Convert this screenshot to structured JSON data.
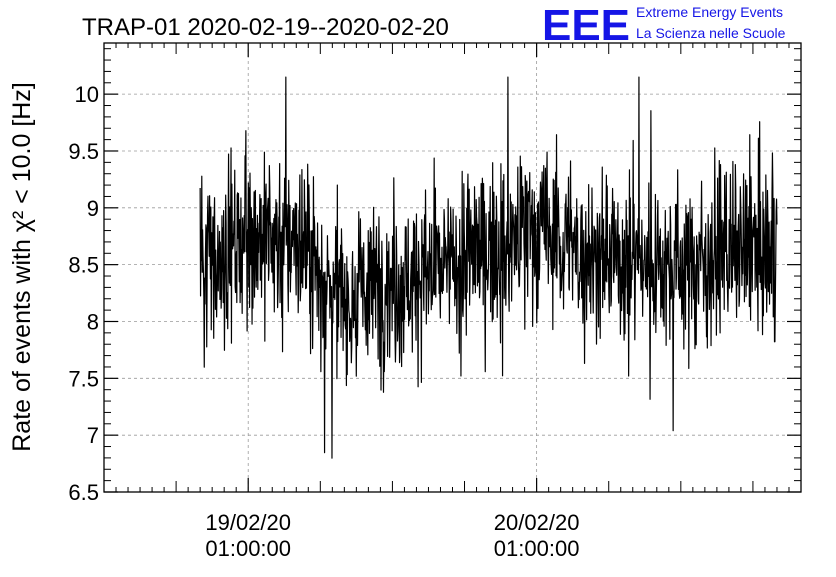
{
  "chart_data": {
    "type": "line",
    "title": "TRAP-01 2020-02-19--2020-02-20",
    "ylabel": "Rate of events with χ² < 10.0 [Hz]",
    "xlabel": "",
    "ylim": [
      6.5,
      10.45
    ],
    "yticks": [
      6.5,
      7,
      7.5,
      8,
      8.5,
      9,
      9.5,
      10
    ],
    "ytick_labels": [
      "6.5",
      "7",
      "7.5",
      "8",
      "8.5",
      "9",
      "9.5",
      "10"
    ],
    "xlim": [
      "2020-02-18 13:00",
      "2020-02-20 23:00"
    ],
    "xticks": [
      {
        "x": "2020-02-19 01:00",
        "date": "19/02/20",
        "time": "01:00:00"
      },
      {
        "x": "2020-02-20 01:00",
        "date": "20/02/20",
        "time": "01:00:00"
      }
    ],
    "grid": true,
    "legend": "none",
    "line_color": "#000000",
    "series": [
      {
        "x": [
          "2020-02-18 21:00",
          "2020-02-19 01:00",
          "2020-02-19 05:00",
          "2020-02-19 09:00",
          "2020-02-19 13:00",
          "2020-02-19 17:00",
          "2020-02-19 21:00",
          "2020-02-20 01:00",
          "2020-02-20 05:00",
          "2020-02-20 09:00",
          "2020-02-20 13:00",
          "2020-02-20 17:00",
          "2020-02-20 21:00"
        ],
        "values": [
          8.5,
          8.75,
          8.7,
          8.2,
          8.35,
          8.45,
          8.65,
          8.8,
          8.6,
          8.55,
          8.5,
          8.6,
          8.6
        ]
      }
    ]
  },
  "logo": {
    "text": "EEE",
    "line1": "Extreme Energy Events",
    "line2": "La Scienza nelle Scuole",
    "color": "#1515e6"
  }
}
